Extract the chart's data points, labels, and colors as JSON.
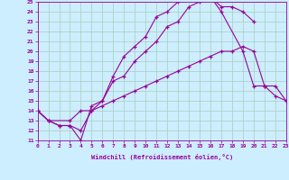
{
  "xlabel": "Windchill (Refroidissement éolien,°C)",
  "bg_color": "#cceeff",
  "grid_color": "#aaccbb",
  "line_color": "#990099",
  "xlim": [
    0,
    23
  ],
  "ylim": [
    11,
    25
  ],
  "xticks": [
    0,
    1,
    2,
    3,
    4,
    5,
    6,
    7,
    8,
    9,
    10,
    11,
    12,
    13,
    14,
    15,
    16,
    17,
    18,
    19,
    20,
    21,
    22,
    23
  ],
  "yticks": [
    11,
    12,
    13,
    14,
    15,
    16,
    17,
    18,
    19,
    20,
    21,
    22,
    23,
    24,
    25
  ],
  "line1_x": [
    0,
    1,
    2,
    3,
    4,
    5,
    6,
    7,
    8,
    9,
    10,
    11,
    12,
    13,
    14,
    15,
    16,
    17,
    18,
    19,
    20
  ],
  "line1_y": [
    14,
    13,
    12.5,
    12.5,
    12,
    14,
    15,
    17,
    17.5,
    19,
    20,
    21,
    22.5,
    23,
    24.5,
    25,
    25.5,
    24.5,
    24.5,
    24,
    23
  ],
  "line2_x": [
    0,
    1,
    2,
    3,
    4,
    5,
    6,
    7,
    8,
    9,
    10,
    11,
    12,
    13,
    14,
    15,
    16,
    17,
    19,
    20,
    21,
    22,
    23
  ],
  "line2_y": [
    14,
    13,
    12.5,
    12.5,
    11,
    14.5,
    15,
    17.5,
    19.5,
    20.5,
    21.5,
    23.5,
    24,
    25,
    25.5,
    25.5,
    25.5,
    24,
    20,
    16.5,
    16.5,
    15.5,
    15
  ],
  "line3_x": [
    0,
    1,
    3,
    4,
    5,
    6,
    7,
    8,
    9,
    10,
    11,
    12,
    13,
    14,
    15,
    16,
    17,
    18,
    19,
    20,
    21,
    22,
    23
  ],
  "line3_y": [
    14,
    13,
    13,
    14,
    14,
    14.5,
    15,
    15.5,
    16,
    16.5,
    17,
    17.5,
    18,
    18.5,
    19,
    19.5,
    20,
    20,
    20.5,
    20,
    16.5,
    16.5,
    15
  ]
}
